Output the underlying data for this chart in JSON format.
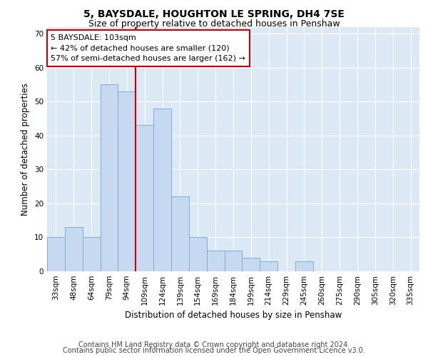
{
  "title": "5, BAYSDALE, HOUGHTON LE SPRING, DH4 7SE",
  "subtitle": "Size of property relative to detached houses in Penshaw",
  "xlabel": "Distribution of detached houses by size in Penshaw",
  "ylabel": "Number of detached properties",
  "categories": [
    "33sqm",
    "48sqm",
    "64sqm",
    "79sqm",
    "94sqm",
    "109sqm",
    "124sqm",
    "139sqm",
    "154sqm",
    "169sqm",
    "184sqm",
    "199sqm",
    "214sqm",
    "229sqm",
    "245sqm",
    "260sqm",
    "275sqm",
    "290sqm",
    "305sqm",
    "320sqm",
    "335sqm"
  ],
  "values": [
    10,
    13,
    10,
    55,
    53,
    43,
    48,
    22,
    10,
    6,
    6,
    4,
    3,
    0,
    3,
    0,
    0,
    0,
    0,
    0,
    0
  ],
  "bar_color": "#c6d9f0",
  "bar_edge_color": "#7bafd4",
  "vline_x_index": 4.5,
  "vline_color": "#cc0000",
  "ylim": [
    0,
    72
  ],
  "yticks": [
    0,
    10,
    20,
    30,
    40,
    50,
    60,
    70
  ],
  "annotation_text": "5 BAYSDALE: 103sqm\n← 42% of detached houses are smaller (120)\n57% of semi-detached houses are larger (162) →",
  "annotation_box_color": "#ffffff",
  "annotation_box_edge": "#cc0000",
  "footer1": "Contains HM Land Registry data © Crown copyright and database right 2024.",
  "footer2": "Contains public sector information licensed under the Open Government Licence v3.0.",
  "fig_bg_color": "#ffffff",
  "plot_bg_color": "#dce9f5",
  "grid_color": "#ffffff",
  "title_fontsize": 10,
  "subtitle_fontsize": 9,
  "axis_label_fontsize": 8.5,
  "tick_fontsize": 7.5,
  "annotation_fontsize": 8,
  "footer_fontsize": 7
}
